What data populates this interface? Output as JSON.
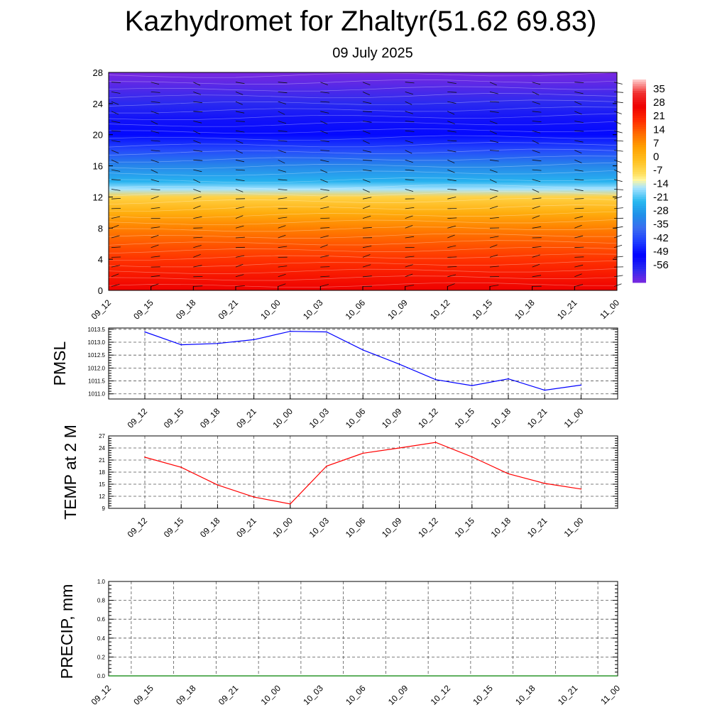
{
  "header": {
    "title": "Kazhydromet for Zhaltyr(51.62 69.83)",
    "subtitle": "09 July 2025"
  },
  "chart_data": [
    {
      "type": "heatmap",
      "title": "",
      "x": [
        "09_12",
        "09_15",
        "09_18",
        "09_21",
        "10_00",
        "10_03",
        "10_06",
        "10_09",
        "10_12",
        "10_15",
        "10_18",
        "10_21",
        "11_00"
      ],
      "y_ticks": [
        0,
        4,
        8,
        12,
        16,
        20,
        24,
        28
      ],
      "ylim": [
        0,
        28
      ],
      "colorbar_ticks": [
        "35",
        "28",
        "21",
        "14",
        "7",
        "0",
        "-7",
        "-14",
        "-21",
        "-28",
        "-35",
        "-42",
        "-49",
        "-56"
      ],
      "colorbar_range": [
        -60,
        38
      ],
      "temperature_profile": [
        {
          "level": 0,
          "value": 28
        },
        {
          "level": 2,
          "value": 24
        },
        {
          "level": 4,
          "value": 20
        },
        {
          "level": 6,
          "value": 16
        },
        {
          "level": 8,
          "value": 11
        },
        {
          "level": 10,
          "value": 4
        },
        {
          "level": 12,
          "value": -4
        },
        {
          "level": 13,
          "value": -14
        },
        {
          "level": 14,
          "value": -22
        },
        {
          "level": 16,
          "value": -30
        },
        {
          "level": 18,
          "value": -40
        },
        {
          "level": 20,
          "value": -48
        },
        {
          "level": 22,
          "value": -52
        },
        {
          "level": 24,
          "value": -56
        },
        {
          "level": 28,
          "value": -60
        }
      ],
      "wind_barbs": "shown",
      "grid": false
    },
    {
      "type": "line",
      "ylabel": "PMSL",
      "x": [
        "09_12",
        "09_15",
        "09_18",
        "09_21",
        "10_00",
        "10_03",
        "10_06",
        "10_09",
        "10_12",
        "10_15",
        "10_18",
        "10_21",
        "11_00"
      ],
      "series": [
        {
          "values": [
            1013.4,
            1012.9,
            1012.95,
            1013.1,
            1013.42,
            1013.4,
            1012.7,
            1012.15,
            1011.55,
            1011.32,
            1011.58,
            1011.14,
            1011.34
          ],
          "color": "#0000ff"
        }
      ],
      "ylim": [
        1010.8,
        1013.55
      ],
      "y_ticks": [
        "1011.0",
        "1011.5",
        "1012.0",
        "1012.5",
        "1013.0",
        "1013.5"
      ],
      "grid": true
    },
    {
      "type": "line",
      "ylabel": "TEMP at 2 M",
      "x": [
        "09_12",
        "09_15",
        "09_18",
        "09_21",
        "10_00",
        "10_03",
        "10_06",
        "10_09",
        "10_12",
        "10_15",
        "10_18",
        "10_21",
        "11_00"
      ],
      "series": [
        {
          "values": [
            21.7,
            19.2,
            14.8,
            11.8,
            10.1,
            19.5,
            22.7,
            24.0,
            25.4,
            21.8,
            17.6,
            15.2,
            13.8
          ],
          "color": "#ff0000"
        }
      ],
      "ylim": [
        9,
        27
      ],
      "y_ticks": [
        "9",
        "12",
        "15",
        "18",
        "21",
        "24",
        "27"
      ],
      "grid": true
    },
    {
      "type": "line",
      "ylabel": "PRECIP, mm",
      "x": [
        "09_12",
        "09_15",
        "09_18",
        "09_21",
        "10_00",
        "10_03",
        "10_06",
        "10_09",
        "10_12",
        "10_15",
        "10_18",
        "10_21",
        "11_00"
      ],
      "series": [
        {
          "values": [
            0,
            0,
            0,
            0,
            0,
            0,
            0,
            0,
            0,
            0,
            0,
            0,
            0
          ],
          "color": "#008000"
        }
      ],
      "ylim": [
        0,
        1
      ],
      "y_ticks": [
        "0.0",
        "0.2",
        "0.4",
        "0.6",
        "0.8",
        "1.0"
      ],
      "grid": true
    }
  ]
}
